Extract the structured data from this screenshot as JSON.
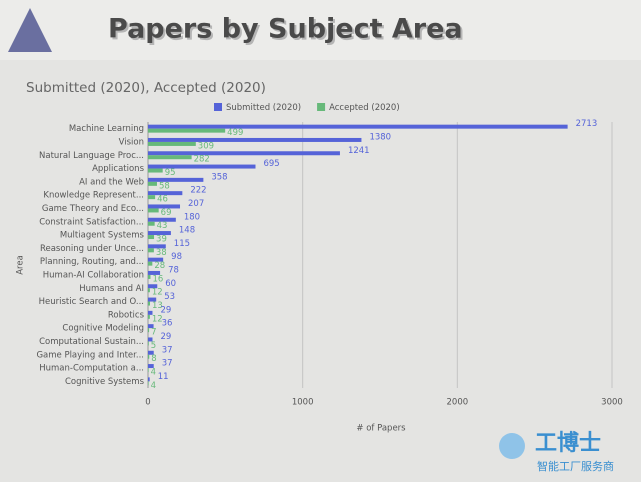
{
  "chart_data": {
    "type": "bar",
    "orientation": "horizontal",
    "title": "Papers by Subject Area",
    "subtitle": "Submitted (2020), Accepted (2020)",
    "xlabel": "# of Papers",
    "ylabel": "Area",
    "categories": [
      "Machine Learning",
      "Vision",
      "Natural Language Proc...",
      "Applications",
      "AI and the Web",
      "Knowledge Represent...",
      "Game Theory and Eco...",
      "Constraint Satisfaction...",
      "Multiagent Systems",
      "Reasoning under Unce...",
      "Planning, Routing, and...",
      "Human-AI Collaboration",
      "Humans and AI",
      "Heuristic Search and O...",
      "Robotics",
      "Cognitive Modeling",
      "Computational Sustain...",
      "Game Playing and Inter...",
      "Human-Computation a...",
      "Cognitive Systems"
    ],
    "series": [
      {
        "name": "Submitted (2020)",
        "color": "#5563d8",
        "values": [
          2713,
          1380,
          1241,
          695,
          358,
          222,
          207,
          180,
          148,
          115,
          98,
          78,
          60,
          53,
          29,
          36,
          29,
          37,
          37,
          11
        ]
      },
      {
        "name": "Accepted (2020)",
        "color": "#67b97a",
        "values": [
          499,
          309,
          282,
          95,
          58,
          46,
          69,
          43,
          39,
          38,
          28,
          16,
          12,
          13,
          12,
          7,
          5,
          8,
          4,
          4
        ]
      }
    ],
    "xlim": [
      0,
      3000
    ],
    "xticks": [
      0,
      1000,
      2000,
      3000
    ],
    "grid": true,
    "legend": "top"
  },
  "watermark": {
    "brand": "工博士",
    "slogan": "智能工厂服务商"
  }
}
